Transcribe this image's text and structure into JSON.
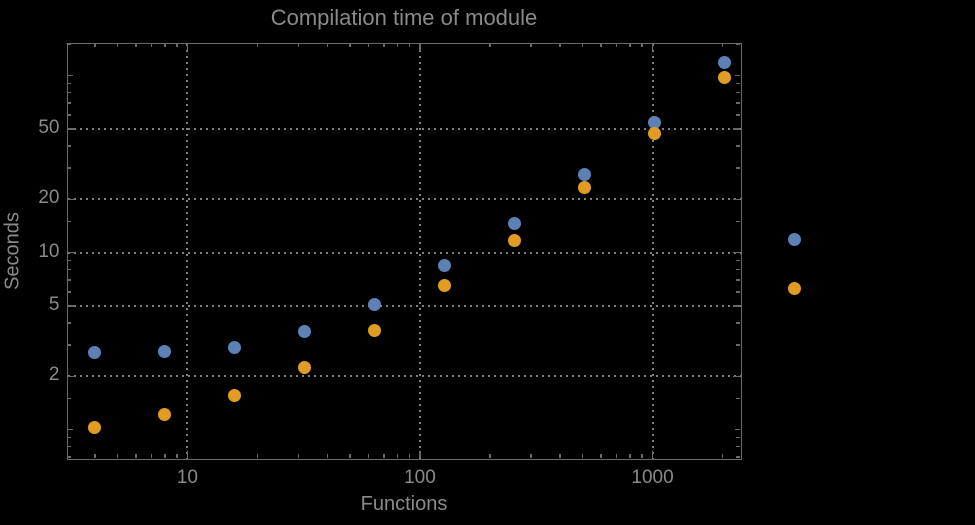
{
  "chart_data": {
    "type": "scatter",
    "title": "Compilation time of module",
    "xlabel": "Functions",
    "ylabel": "Seconds",
    "x_scale": "log",
    "y_scale": "log",
    "xlim": [
      3.05,
      2366
    ],
    "ylim": [
      0.695,
      151.8
    ],
    "grid": "dotted, at labeled major ticks only",
    "legend": "none",
    "x": [
      4,
      8,
      16,
      32,
      64,
      128,
      256,
      512,
      1024,
      2048,
      4096
    ],
    "series": [
      {
        "name": "blue-series",
        "color": "#5E81B5",
        "values": [
          2.73,
          2.76,
          2.92,
          3.6,
          5.1,
          8.45,
          14.5,
          27.5,
          54,
          118,
          11.8
        ]
      },
      {
        "name": "orange-series",
        "color": "#E19C24",
        "values": [
          1.03,
          1.22,
          1.55,
          2.25,
          3.62,
          6.5,
          11.7,
          23.3,
          47,
          98,
          6.3
        ]
      }
    ],
    "points_beyond_xlim_drawn_outside_frame": [
      {
        "series": "blue-series",
        "x": 4096,
        "y": 11.8
      },
      {
        "series": "orange-series",
        "x": 4096,
        "y": 6.3
      }
    ]
  },
  "axes": {
    "x": {
      "major_ticks": [
        10,
        100,
        1000
      ],
      "major_labels": [
        "10",
        "100",
        "1000"
      ],
      "minor_ticks": [
        4,
        5,
        6,
        7,
        8,
        9,
        20,
        30,
        40,
        50,
        60,
        70,
        80,
        90,
        200,
        300,
        400,
        500,
        600,
        700,
        800,
        900,
        2000
      ],
      "gridlines": [
        10,
        100,
        1000
      ]
    },
    "y": {
      "major_ticks": [
        2,
        5,
        10,
        20,
        50
      ],
      "major_labels": [
        "2",
        "5",
        "10",
        "20",
        "50"
      ],
      "medium_ticks": [
        1,
        100
      ],
      "minor_ticks": [
        0.7,
        0.8,
        0.9,
        1.5,
        3,
        4,
        6,
        7,
        8,
        9,
        15,
        30,
        40,
        60,
        70,
        80,
        90,
        150
      ],
      "gridlines": [
        2,
        5,
        10,
        20,
        50
      ]
    }
  },
  "colors": {
    "background": "#000000",
    "frame": "#696969",
    "grid": "#808080",
    "text": "#8a8a8a"
  }
}
